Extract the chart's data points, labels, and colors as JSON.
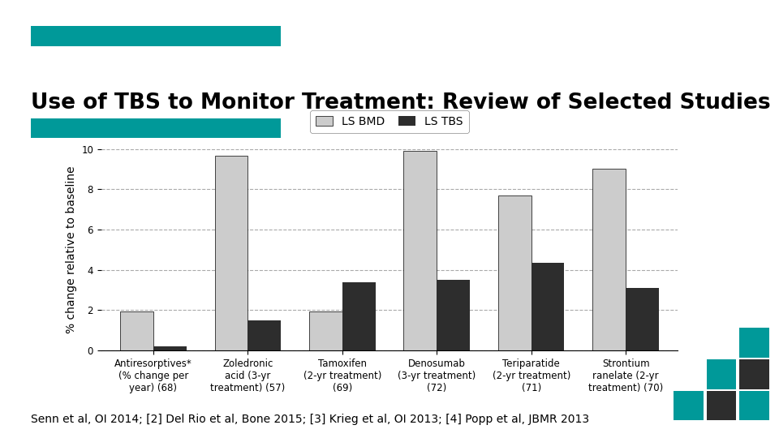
{
  "title": "Use of TBS to Monitor Treatment: Review of Selected Studies",
  "subtitle_footer": "Senn et al, OI 2014; [2] Del Rio et al, Bone 2015; [3] Krieg et al, OI 2013; [4] Popp et al, JBMR 2013",
  "ylabel": "% change relative to baseline",
  "categories": [
    "Antiresorptives*\n(% change per\nyear) (68)",
    "Zoledronic\nacid (3-yr\ntreatment) (57)",
    "Tamoxifen\n(2-yr treatment)\n(69)",
    "Denosumab\n(3-yr treatment)\n(72)",
    "Teriparatide\n(2-yr treatment)\n(71)",
    "Strontium\nranelate (2-yr\ntreatment) (70)"
  ],
  "ls_bmd": [
    1.95,
    9.65,
    1.95,
    9.9,
    7.7,
    9.0
  ],
  "ls_tbs": [
    0.2,
    1.5,
    3.4,
    3.5,
    4.35,
    3.1
  ],
  "bmd_color": "#cccccc",
  "tbs_color": "#2d2d2d",
  "legend_labels": [
    "LS BMD",
    "LS TBS"
  ],
  "ylim": [
    0,
    10
  ],
  "yticks": [
    0,
    2,
    4,
    6,
    8,
    10
  ],
  "bar_width": 0.35,
  "title_color": "#000000",
  "title_fontsize": 19,
  "footer_fontsize": 10,
  "ylabel_fontsize": 10,
  "tick_label_fontsize": 8.5,
  "legend_fontsize": 10,
  "header_bar_color": "#009999",
  "background_color": "#ffffff",
  "grid_color": "#aaaaaa",
  "grid_linestyle": "--",
  "mosaic_colors": [
    [
      null,
      null,
      "#009999"
    ],
    [
      null,
      "#009999",
      "#2d2d2d"
    ],
    [
      "#009999",
      "#2d2d2d",
      "#009999"
    ]
  ]
}
